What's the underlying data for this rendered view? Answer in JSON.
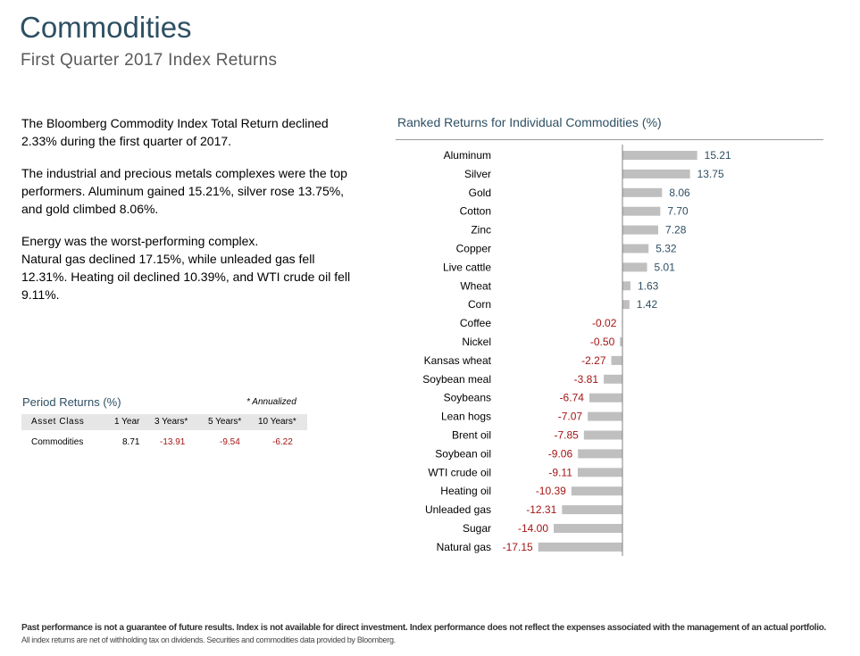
{
  "header": {
    "title": "Commodities",
    "subtitle": "First Quarter 2017 Index Returns"
  },
  "summary": {
    "p1": "The Bloomberg Commodity Index Total Return declined 2.33% during the first quarter of 2017.",
    "p2": "The industrial and precious metals complexes were the top performers. Aluminum gained 15.21%, silver rose 13.75%, and gold climbed 8.06%.",
    "p3_line1": "Energy was the worst-performing complex.",
    "p3_line2": "Natural gas declined 17.15%, while unleaded gas fell 12.31%. Heating oil declined 10.39%, and WTI crude oil fell 9.11%."
  },
  "period_returns": {
    "title": "Period Returns (%)",
    "note": "* Annualized",
    "headers": [
      "Asset Class",
      "1 Year",
      "3 Years*",
      "5 Years*",
      "10 Years*"
    ],
    "row": {
      "asset": "Commodities",
      "y1": "8.71",
      "y3": "-13.91",
      "y5": "-9.54",
      "y10": "-6.22"
    }
  },
  "colors": {
    "bar": "#bfbfbf",
    "positive_label": "#2e4f63",
    "negative_label": "#a31515",
    "title": "#2e4f63"
  },
  "chart_data": {
    "type": "bar",
    "orientation": "horizontal",
    "title": "Ranked Returns for Individual Commodities (%)",
    "categories": [
      "Aluminum",
      "Silver",
      "Gold",
      "Cotton",
      "Zinc",
      "Copper",
      "Live cattle",
      "Wheat",
      "Corn",
      "Coffee",
      "Nickel",
      "Kansas wheat",
      "Soybean meal",
      "Soybeans",
      "Lean hogs",
      "Brent oil",
      "Soybean oil",
      "WTI crude oil",
      "Heating oil",
      "Unleaded gas",
      "Sugar",
      "Natural gas"
    ],
    "values": [
      15.21,
      13.75,
      8.06,
      7.7,
      7.28,
      5.32,
      5.01,
      1.63,
      1.42,
      -0.02,
      -0.5,
      -2.27,
      -3.81,
      -6.74,
      -7.07,
      -7.85,
      -9.06,
      -9.11,
      -10.39,
      -12.31,
      -14.0,
      -17.15
    ],
    "value_labels": [
      "15.21",
      "13.75",
      "8.06",
      "7.70",
      "7.28",
      "5.32",
      "5.01",
      "1.63",
      "1.42",
      "-0.02",
      "-0.50",
      "-2.27",
      "-3.81",
      "-6.74",
      "-7.07",
      "-7.85",
      "-9.06",
      "-9.11",
      "-10.39",
      "-12.31",
      "-14.00",
      "-17.15"
    ],
    "xlim": [
      -17.15,
      15.21
    ],
    "grid": false,
    "legend": "none"
  },
  "footer": {
    "line1": "Past performance is not a guarantee of future results. Index is not available for direct investment. Index performance does not reflect the expenses associated with the management of an actual portfolio.",
    "line2": "All index returns are net of withholding tax on dividends. Securities and commodities data provided by Bloomberg."
  }
}
